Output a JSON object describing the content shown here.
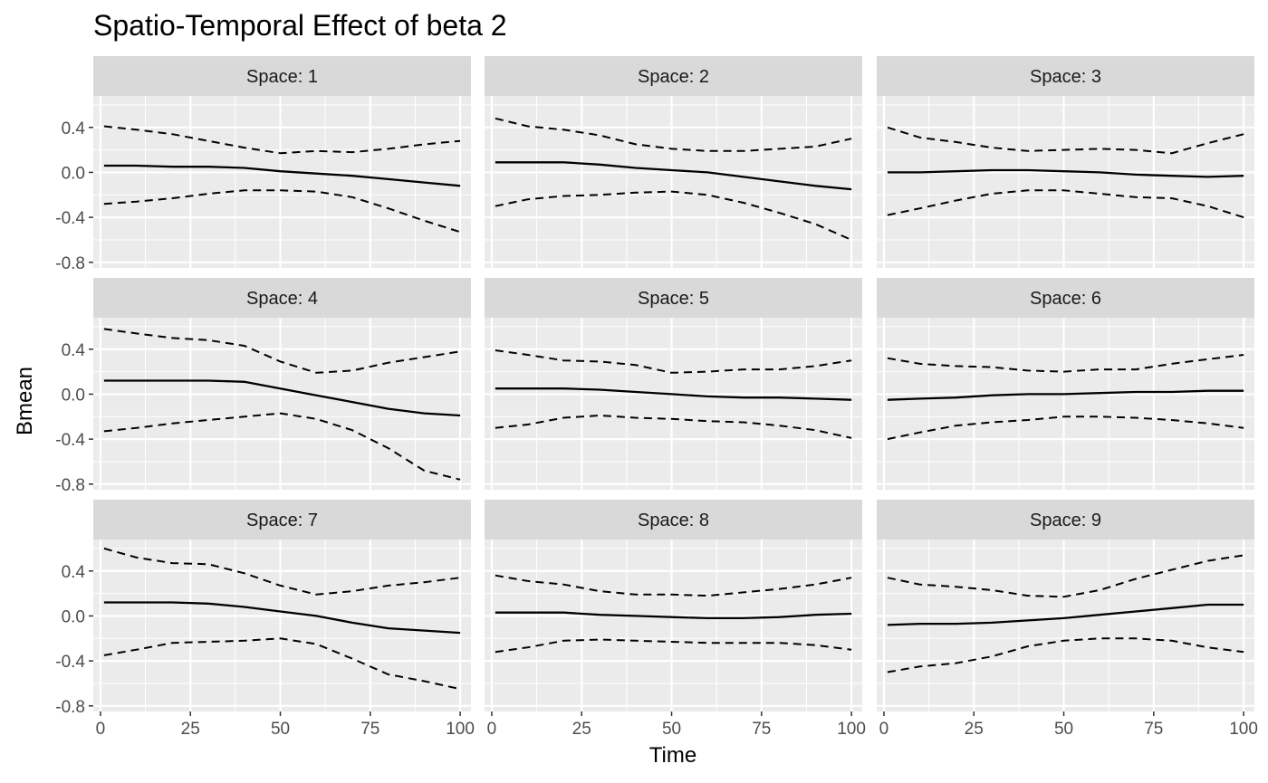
{
  "chart_data": {
    "type": "line",
    "title": "Spatio-Temporal Effect of beta 2",
    "xlabel": "Time",
    "ylabel": "Bmean",
    "xlim": [
      -2,
      103
    ],
    "ylim": [
      -0.85,
      0.68
    ],
    "x_ticks": [
      0,
      25,
      50,
      75,
      100
    ],
    "y_ticks": [
      -0.8,
      -0.4,
      0.0,
      0.4
    ],
    "y_tick_labels": [
      "-0.8",
      "-0.4",
      "0.0",
      "0.4"
    ],
    "x": [
      1,
      10,
      20,
      30,
      40,
      50,
      60,
      70,
      80,
      90,
      100
    ],
    "grid": true,
    "legend": "none",
    "panels": [
      {
        "label": "Space: 1",
        "mean": [
          0.06,
          0.06,
          0.05,
          0.05,
          0.04,
          0.01,
          -0.01,
          -0.03,
          -0.06,
          -0.09,
          -0.12
        ],
        "upper": [
          0.41,
          0.38,
          0.34,
          0.28,
          0.22,
          0.17,
          0.19,
          0.18,
          0.21,
          0.25,
          0.28
        ],
        "lower": [
          -0.28,
          -0.26,
          -0.23,
          -0.19,
          -0.16,
          -0.16,
          -0.17,
          -0.22,
          -0.32,
          -0.43,
          -0.53
        ]
      },
      {
        "label": "Space: 2",
        "mean": [
          0.09,
          0.09,
          0.09,
          0.07,
          0.04,
          0.02,
          0.0,
          -0.04,
          -0.08,
          -0.12,
          -0.15
        ],
        "upper": [
          0.48,
          0.41,
          0.38,
          0.33,
          0.25,
          0.21,
          0.19,
          0.19,
          0.21,
          0.23,
          0.3
        ],
        "lower": [
          -0.3,
          -0.24,
          -0.21,
          -0.2,
          -0.18,
          -0.17,
          -0.2,
          -0.27,
          -0.36,
          -0.46,
          -0.6
        ]
      },
      {
        "label": "Space: 3",
        "mean": [
          0.0,
          0.0,
          0.01,
          0.02,
          0.02,
          0.01,
          0.0,
          -0.02,
          -0.03,
          -0.04,
          -0.03
        ],
        "upper": [
          0.4,
          0.31,
          0.27,
          0.22,
          0.19,
          0.2,
          0.21,
          0.2,
          0.17,
          0.26,
          0.34
        ],
        "lower": [
          -0.38,
          -0.32,
          -0.25,
          -0.19,
          -0.16,
          -0.16,
          -0.19,
          -0.22,
          -0.23,
          -0.3,
          -0.4
        ]
      },
      {
        "label": "Space: 4",
        "mean": [
          0.12,
          0.12,
          0.12,
          0.12,
          0.11,
          0.05,
          -0.01,
          -0.07,
          -0.13,
          -0.17,
          -0.19
        ],
        "upper": [
          0.58,
          0.54,
          0.5,
          0.48,
          0.43,
          0.29,
          0.19,
          0.21,
          0.28,
          0.33,
          0.38
        ],
        "lower": [
          -0.33,
          -0.3,
          -0.26,
          -0.23,
          -0.2,
          -0.17,
          -0.22,
          -0.32,
          -0.48,
          -0.68,
          -0.76
        ]
      },
      {
        "label": "Space: 5",
        "mean": [
          0.05,
          0.05,
          0.05,
          0.04,
          0.02,
          0.0,
          -0.02,
          -0.03,
          -0.03,
          -0.04,
          -0.05
        ],
        "upper": [
          0.39,
          0.35,
          0.3,
          0.29,
          0.26,
          0.19,
          0.2,
          0.22,
          0.22,
          0.25,
          0.3
        ],
        "lower": [
          -0.3,
          -0.27,
          -0.21,
          -0.19,
          -0.21,
          -0.22,
          -0.24,
          -0.25,
          -0.28,
          -0.32,
          -0.39
        ]
      },
      {
        "label": "Space: 6",
        "mean": [
          -0.05,
          -0.04,
          -0.03,
          -0.01,
          0.0,
          0.0,
          0.01,
          0.02,
          0.02,
          0.03,
          0.03
        ],
        "upper": [
          0.32,
          0.27,
          0.25,
          0.24,
          0.21,
          0.2,
          0.22,
          0.22,
          0.27,
          0.31,
          0.35
        ],
        "lower": [
          -0.4,
          -0.34,
          -0.28,
          -0.25,
          -0.23,
          -0.2,
          -0.2,
          -0.21,
          -0.23,
          -0.26,
          -0.3
        ]
      },
      {
        "label": "Space: 7",
        "mean": [
          0.12,
          0.12,
          0.12,
          0.11,
          0.08,
          0.04,
          0.0,
          -0.06,
          -0.11,
          -0.13,
          -0.15
        ],
        "upper": [
          0.6,
          0.52,
          0.47,
          0.46,
          0.38,
          0.27,
          0.19,
          0.22,
          0.27,
          0.3,
          0.34
        ],
        "lower": [
          -0.35,
          -0.3,
          -0.24,
          -0.23,
          -0.22,
          -0.2,
          -0.25,
          -0.38,
          -0.52,
          -0.58,
          -0.65
        ]
      },
      {
        "label": "Space: 8",
        "mean": [
          0.03,
          0.03,
          0.03,
          0.01,
          0.0,
          -0.01,
          -0.02,
          -0.02,
          -0.01,
          0.01,
          0.02
        ],
        "upper": [
          0.36,
          0.31,
          0.28,
          0.22,
          0.19,
          0.19,
          0.18,
          0.21,
          0.24,
          0.28,
          0.34
        ],
        "lower": [
          -0.32,
          -0.28,
          -0.22,
          -0.21,
          -0.22,
          -0.23,
          -0.24,
          -0.24,
          -0.24,
          -0.26,
          -0.3
        ]
      },
      {
        "label": "Space: 9",
        "mean": [
          -0.08,
          -0.07,
          -0.07,
          -0.06,
          -0.04,
          -0.02,
          0.01,
          0.04,
          0.07,
          0.1,
          0.1
        ],
        "upper": [
          0.34,
          0.28,
          0.26,
          0.23,
          0.18,
          0.17,
          0.23,
          0.33,
          0.41,
          0.49,
          0.54
        ],
        "lower": [
          -0.5,
          -0.45,
          -0.42,
          -0.36,
          -0.27,
          -0.22,
          -0.2,
          -0.2,
          -0.22,
          -0.28,
          -0.32
        ]
      }
    ]
  }
}
